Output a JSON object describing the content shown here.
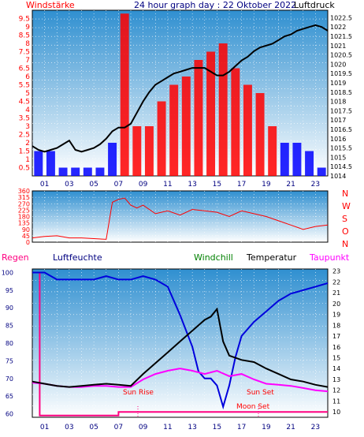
{
  "header": {
    "left_label": "Windstärke",
    "title": "24 hour graph day : 22 Oktober 2022",
    "right_label": "Luftdruck"
  },
  "colors": {
    "plot_gradient_top": "#2f8fd0",
    "plot_gradient_bottom": "#ffffff",
    "wind_bar": "#ff0000",
    "wind_blue": "#0000ff",
    "pressure_line": "#000000",
    "red_text": "#ff0000",
    "navy_text": "#000080",
    "humidity": "#0000dd",
    "temperature": "#000000",
    "dewpoint": "#ff00ff",
    "windchill": "#008000",
    "rain": "#ff0080"
  },
  "x_ticks": [
    "01",
    "03",
    "05",
    "07",
    "09",
    "11",
    "13",
    "15",
    "17",
    "19",
    "21",
    "23"
  ],
  "chart_data": [
    {
      "type": "bar",
      "title": "24 hour graph day : 22 Oktober 2022",
      "y_left_label": "Windstärke",
      "y_right_label": "Luftdruck",
      "y_left_ticks": [
        "9.5",
        "9",
        "8.5",
        "8",
        "7.5",
        "7",
        "6.5",
        "6",
        "5.5",
        "5",
        "4.5",
        "4",
        "3.5",
        "3",
        "2.5",
        "2",
        "1.5",
        "1",
        "0.5"
      ],
      "y_right_ticks": [
        "1022.5",
        "1022",
        "1021.5",
        "1021",
        "1020.5",
        "1020",
        "1019.5",
        "1019",
        "1018.5",
        "1018",
        "1017.5",
        "1017",
        "1016.5",
        "1016",
        "1015.5",
        "1015",
        "1014.5",
        "1014"
      ],
      "y_left_range": [
        0,
        10
      ],
      "y_right_range": [
        1014,
        1022.9
      ],
      "x_range_hours": [
        0,
        24
      ],
      "series": [
        {
          "name": "Windstärke",
          "type": "bar",
          "x": [
            0.5,
            1.5,
            2.5,
            3.5,
            4.5,
            5.5,
            6.5,
            7.5,
            8.5,
            9.5,
            10.5,
            11.5,
            12.5,
            13.5,
            14.5,
            15.5,
            16.5,
            17.5,
            18.5,
            19.5,
            20.5,
            21.5,
            22.5,
            23.5
          ],
          "y": [
            1.5,
            1.5,
            0.5,
            0.5,
            0.5,
            0.5,
            2.0,
            9.8,
            3.0,
            3.0,
            4.5,
            5.5,
            6.0,
            7.0,
            7.5,
            8.0,
            6.5,
            5.5,
            5.0,
            3.0,
            2.0,
            2.0,
            1.5,
            0.5
          ]
        },
        {
          "name": "Luftdruck",
          "type": "line",
          "x": [
            0,
            0.5,
            1,
            1.5,
            2,
            2.5,
            3,
            3.5,
            4,
            4.5,
            5,
            5.5,
            6,
            6.5,
            7,
            7.5,
            8,
            8.5,
            9,
            9.5,
            10,
            10.5,
            11,
            11.5,
            12,
            12.5,
            13,
            13.5,
            14,
            14.5,
            15,
            15.5,
            16,
            16.5,
            17,
            17.5,
            18,
            18.5,
            19,
            19.5,
            20,
            20.5,
            21,
            21.5,
            22,
            22.5,
            23,
            23.5,
            24
          ],
          "y": [
            1015.6,
            1015.4,
            1015.3,
            1015.4,
            1015.5,
            1015.7,
            1015.9,
            1015.4,
            1015.3,
            1015.4,
            1015.5,
            1015.7,
            1016.0,
            1016.4,
            1016.6,
            1016.6,
            1016.8,
            1017.4,
            1018.0,
            1018.5,
            1018.9,
            1019.1,
            1019.3,
            1019.5,
            1019.6,
            1019.7,
            1019.8,
            1019.8,
            1019.8,
            1019.6,
            1019.4,
            1019.4,
            1019.6,
            1019.9,
            1020.2,
            1020.4,
            1020.7,
            1020.9,
            1021.0,
            1021.1,
            1021.3,
            1021.5,
            1021.6,
            1021.8,
            1021.9,
            1022.0,
            1022.1,
            1022.0,
            1021.8
          ]
        }
      ]
    },
    {
      "type": "line",
      "title": "",
      "y_left_ticks": [
        "360",
        "315",
        "270",
        "225",
        "180",
        "135",
        "90",
        "45",
        "0"
      ],
      "y_right_ticks": [
        "N",
        "W",
        "S",
        "O",
        "N"
      ],
      "y_range": [
        0,
        360
      ],
      "series": [
        {
          "name": "",
          "x": [
            0,
            1,
            2,
            3,
            4,
            5,
            6,
            6.5,
            7,
            7.5,
            8,
            8.5,
            9,
            10,
            11,
            12,
            13,
            14,
            15,
            16,
            17,
            18,
            19,
            20,
            21,
            22,
            23,
            24
          ],
          "y": [
            30,
            40,
            45,
            30,
            30,
            25,
            20,
            280,
            300,
            310,
            260,
            240,
            260,
            200,
            220,
            190,
            230,
            220,
            210,
            180,
            220,
            200,
            180,
            150,
            120,
            90,
            110,
            120
          ]
        }
      ]
    },
    {
      "type": "line",
      "title": "",
      "legend": [
        "Regen",
        "Luftfeuchte",
        "Windchill",
        "Temperatur",
        "Taupunkt"
      ],
      "y_left_ticks": [
        "100",
        "95",
        "90",
        "85",
        "80",
        "75",
        "70",
        "65",
        "60"
      ],
      "y_left_range": [
        59,
        101
      ],
      "y_right_ticks": [
        "23",
        "22",
        "21",
        "20",
        "19",
        "18",
        "17",
        "16",
        "15",
        "14",
        "13",
        "12",
        "11",
        "10"
      ],
      "y_right_range": [
        9.5,
        23.2
      ],
      "annotations": [
        "Sun Rise",
        "Sun Set",
        "Moon Set"
      ],
      "series": [
        {
          "name": "Luftfeuchte",
          "x": [
            0,
            1,
            2,
            3,
            4,
            5,
            6,
            7,
            8,
            9,
            10,
            11,
            12,
            13,
            13.5,
            14,
            14.5,
            15,
            15.5,
            16,
            16.5,
            17,
            18,
            19,
            20,
            21,
            22,
            23,
            24
          ],
          "y": [
            100,
            100,
            98,
            98,
            98,
            98,
            99,
            98,
            98,
            99,
            98,
            96,
            88,
            79,
            72,
            70,
            70,
            68,
            62,
            68,
            76,
            82,
            86,
            89,
            92,
            94,
            95,
            96,
            97
          ]
        },
        {
          "name": "Temperatur",
          "x": [
            0,
            1,
            2,
            3,
            4,
            5,
            6,
            7,
            8,
            9,
            10,
            11,
            12,
            13,
            14,
            14.5,
            15,
            15.5,
            16,
            17,
            18,
            19,
            20,
            21,
            22,
            23,
            24
          ],
          "y": [
            12.8,
            12.6,
            12.4,
            12.3,
            12.4,
            12.5,
            12.6,
            12.5,
            12.4,
            13.5,
            14.5,
            15.5,
            16.5,
            17.5,
            18.5,
            18.8,
            19.5,
            16.5,
            15.2,
            14.8,
            14.6,
            14.0,
            13.5,
            13.0,
            12.8,
            12.5,
            12.3
          ]
        },
        {
          "name": "Taupunkt",
          "x": [
            0,
            1,
            2,
            3,
            4,
            5,
            6,
            7,
            8,
            9,
            10,
            11,
            12,
            13,
            14,
            15,
            16,
            17,
            18,
            19,
            20,
            21,
            22,
            23,
            24
          ],
          "y": [
            12.7,
            12.6,
            12.4,
            12.3,
            12.3,
            12.4,
            12.4,
            12.3,
            12.3,
            13.0,
            13.5,
            13.8,
            14.0,
            13.8,
            13.5,
            13.8,
            13.3,
            13.5,
            13.0,
            12.6,
            12.5,
            12.4,
            12.2,
            12.0,
            11.9
          ]
        },
        {
          "name": "Regen",
          "x": [
            0,
            0.6,
            0.6,
            7,
            7,
            24
          ],
          "y": [
            100,
            100,
            59.5,
            59.5,
            60.5,
            60.5
          ]
        }
      ]
    }
  ]
}
